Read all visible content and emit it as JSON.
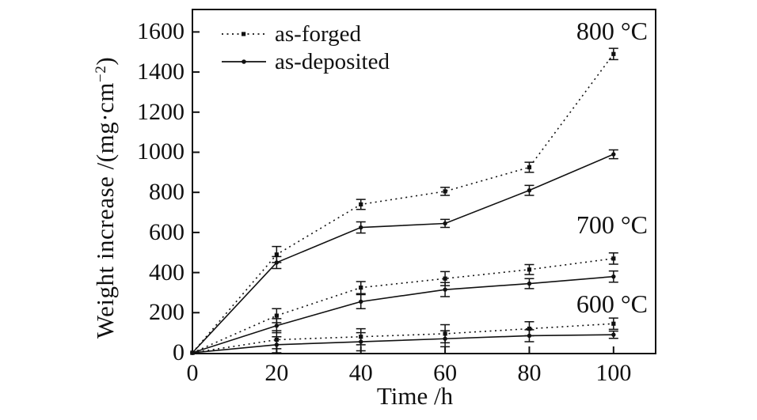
{
  "colors": {
    "ink": "#111111",
    "background": "#ffffff"
  },
  "axis": {
    "x_title": "Time /h",
    "y_title_prefix": "Weight increase /(mg·cm",
    "y_title_sup": "−2",
    "y_title_suffix": ")"
  },
  "legend": {
    "items": [
      {
        "label": "as-forged",
        "line_style": "dotted",
        "marker": "square"
      },
      {
        "label": "as-deposited",
        "line_style": "solid",
        "marker": "circle"
      }
    ]
  },
  "chart_data": {
    "type": "line",
    "title": "",
    "xlabel": "Time /h",
    "ylabel": "Weight increase /(mg·cm⁻²)",
    "xlim": [
      0,
      110
    ],
    "ylim": [
      0,
      1712
    ],
    "x_ticks": [
      0,
      20,
      40,
      60,
      80,
      100
    ],
    "y_ticks": [
      0,
      200,
      400,
      600,
      800,
      1000,
      1200,
      1400,
      1600
    ],
    "grid": false,
    "legend_position": "top-left inside plot",
    "error_bars": true,
    "x": [
      0,
      20,
      40,
      60,
      80,
      100
    ],
    "series": [
      {
        "name": "as-forged",
        "temperature": "800 °C",
        "line_style": "dotted",
        "marker": "square",
        "values": [
          0,
          490,
          740,
          805,
          925,
          1490
        ],
        "errors": [
          0,
          40,
          25,
          20,
          25,
          28
        ]
      },
      {
        "name": "as-deposited",
        "temperature": "800 °C",
        "line_style": "solid",
        "marker": "circle",
        "values": [
          0,
          450,
          625,
          645,
          810,
          990
        ],
        "errors": [
          0,
          30,
          28,
          20,
          25,
          22
        ]
      },
      {
        "name": "as-forged",
        "temperature": "700 °C",
        "line_style": "dotted",
        "marker": "square",
        "values": [
          0,
          185,
          325,
          370,
          415,
          470
        ],
        "errors": [
          0,
          35,
          30,
          35,
          25,
          28
        ]
      },
      {
        "name": "as-deposited",
        "temperature": "700 °C",
        "line_style": "solid",
        "marker": "circle",
        "values": [
          0,
          135,
          255,
          315,
          345,
          380
        ],
        "errors": [
          0,
          35,
          35,
          35,
          25,
          28
        ]
      },
      {
        "name": "as-forged",
        "temperature": "600 °C",
        "line_style": "dotted",
        "marker": "square",
        "values": [
          0,
          65,
          80,
          95,
          120,
          145
        ],
        "errors": [
          0,
          45,
          40,
          45,
          35,
          28
        ]
      },
      {
        "name": "as-deposited",
        "temperature": "600 °C",
        "line_style": "solid",
        "marker": "circle",
        "values": [
          0,
          40,
          55,
          70,
          85,
          90
        ],
        "errors": [
          0,
          40,
          45,
          40,
          30,
          18
        ]
      }
    ],
    "annotations": [
      {
        "text": "800 °C"
      },
      {
        "text": "700 °C"
      },
      {
        "text": "600 °C"
      }
    ]
  }
}
